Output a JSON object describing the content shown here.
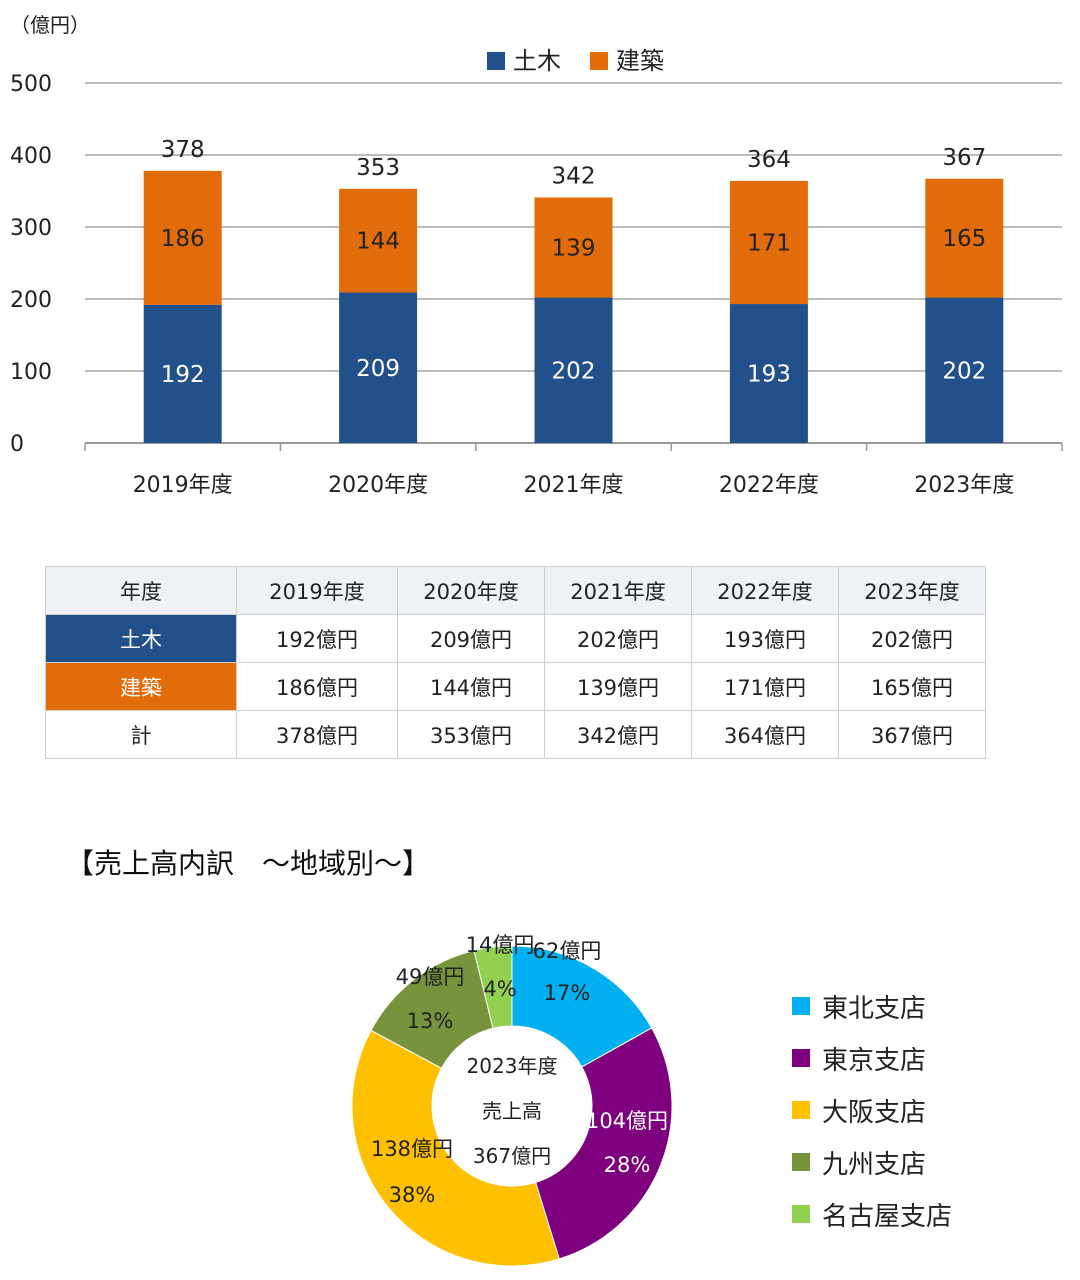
{
  "chart_data": [
    {
      "type": "bar",
      "stacked": true,
      "unit_label": "（億円）",
      "categories": [
        "2019年度",
        "2020年度",
        "2021年度",
        "2022年度",
        "2023年度"
      ],
      "series": [
        {
          "name": "土木",
          "values": [
            192,
            209,
            202,
            193,
            202
          ],
          "color": "#22508a"
        },
        {
          "name": "建築",
          "values": [
            186,
            144,
            139,
            171,
            165
          ],
          "color": "#e36c0a"
        }
      ],
      "totals": [
        378,
        353,
        342,
        364,
        367
      ],
      "ylim": [
        0,
        500
      ],
      "yticks": [
        0,
        100,
        200,
        300,
        400,
        500
      ],
      "grid": true,
      "legend": "top-center"
    },
    {
      "type": "pie",
      "donut": true,
      "center_label": [
        "2023年度",
        "売上高",
        "367億円"
      ],
      "slices": [
        {
          "name": "東北支店",
          "value": 62,
          "value_label": "62億円",
          "pct_label": "17%",
          "color": "#00b0f0"
        },
        {
          "name": "東京支店",
          "value": 104,
          "value_label": "104億円",
          "pct_label": "28%",
          "color": "#7f007f"
        },
        {
          "name": "大阪支店",
          "value": 138,
          "value_label": "138億円",
          "pct_label": "38%",
          "color": "#ffc000"
        },
        {
          "name": "九州支店",
          "value": 49,
          "value_label": "49億円",
          "pct_label": "13%",
          "color": "#77933c"
        },
        {
          "name": "名古屋支店",
          "value": 14,
          "value_label": "14億円",
          "pct_label": "4%",
          "color": "#92d050"
        }
      ],
      "legend": "right"
    }
  ],
  "table": {
    "header": [
      "年度",
      "2019年度",
      "2020年度",
      "2021年度",
      "2022年度",
      "2023年度"
    ],
    "rows": [
      {
        "label": "土木",
        "color": "#22508a",
        "values": [
          "192億円",
          "209億円",
          "202億円",
          "193億円",
          "202億円"
        ]
      },
      {
        "label": "建築",
        "color": "#e36c0a",
        "values": [
          "186億円",
          "144億円",
          "139億円",
          "171億円",
          "165億円"
        ]
      },
      {
        "label": "計",
        "color": "",
        "values": [
          "378億円",
          "353億円",
          "342億円",
          "364億円",
          "367億円"
        ]
      }
    ]
  },
  "section_title": "【売上高内訳　～地域別～】"
}
